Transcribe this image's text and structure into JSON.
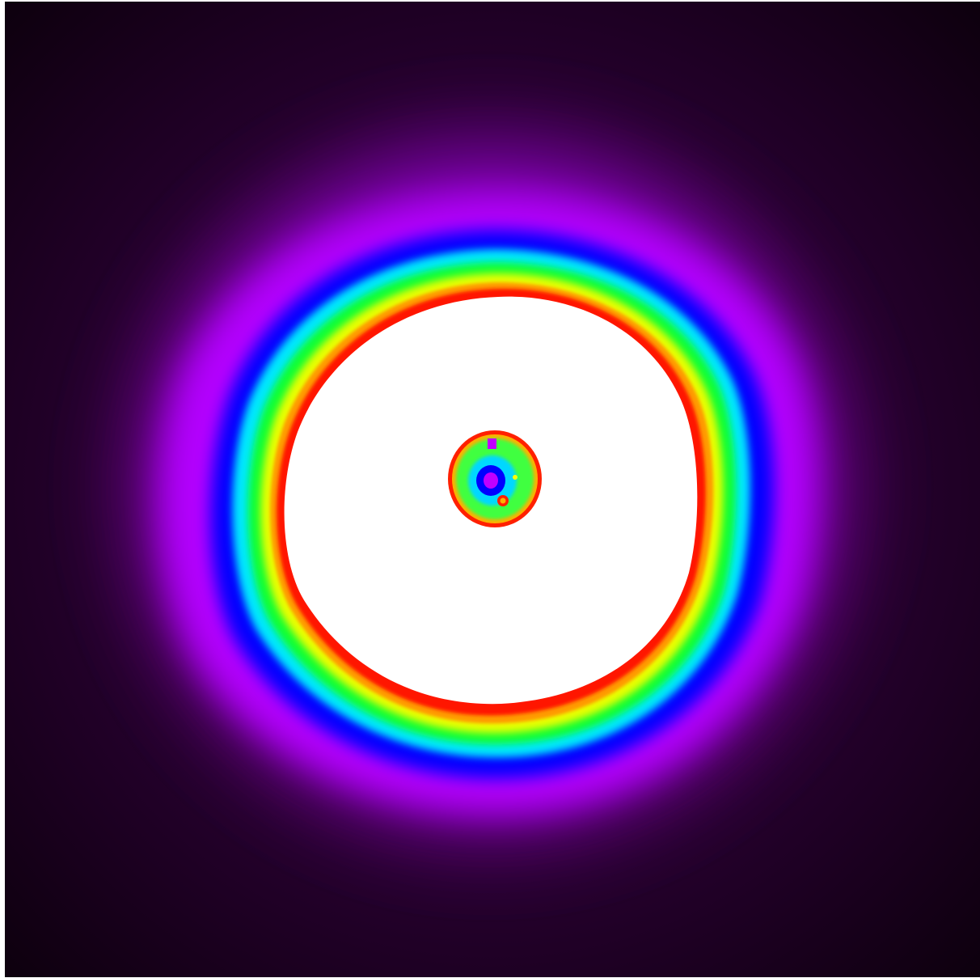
{
  "image": {
    "description_free": true,
    "palette": {
      "frame": "#ffffff",
      "outer_dark": "#120012",
      "dim_purple": "#3a0046",
      "magenta_violet": "#b000ff",
      "blue": "#0000ff",
      "cyan": "#00e0ff",
      "green": "#00ff40",
      "yellow": "#e8ff00",
      "orange": "#ff9000",
      "red": "#ff1000",
      "core": "#ffffff"
    },
    "colormap_stops": [
      "#120012",
      "#3a0046",
      "#b000ff",
      "#0000ff",
      "#00e0ff",
      "#00ff40",
      "#e8ff00",
      "#ff9000",
      "#ff1000",
      "#ffffff"
    ]
  }
}
